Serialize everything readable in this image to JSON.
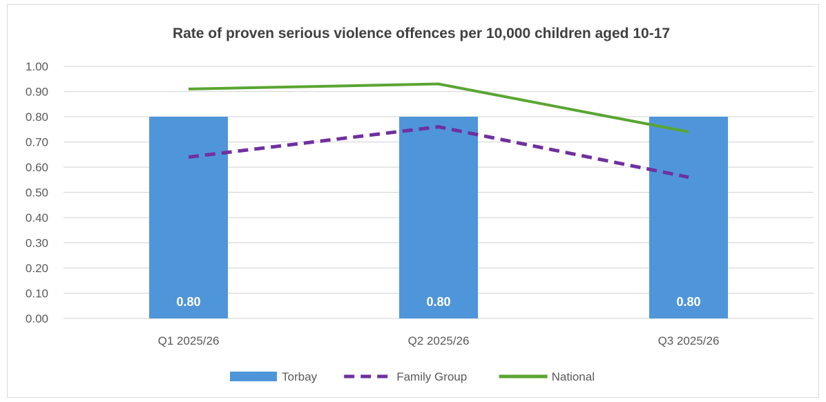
{
  "chart_data": {
    "type": "bar",
    "title": "Rate of proven serious violence offences per 10,000 children aged 10-17",
    "xlabel": "",
    "ylabel": "",
    "categories": [
      "Q1 2025/26",
      "Q2 2025/26",
      "Q3 2025/26"
    ],
    "ylim": [
      0,
      1.0
    ],
    "yticks": [
      "0.00",
      "0.10",
      "0.20",
      "0.30",
      "0.40",
      "0.50",
      "0.60",
      "0.70",
      "0.80",
      "0.90",
      "1.00"
    ],
    "grid": true,
    "legend_position": "bottom",
    "series": [
      {
        "name": "Torbay",
        "type": "bar",
        "values": [
          0.8,
          0.8,
          0.8
        ],
        "data_labels": [
          "0.80",
          "0.80",
          "0.80"
        ],
        "color": "#4f95da"
      },
      {
        "name": "Family Group",
        "type": "line",
        "style": "dashed",
        "values": [
          0.64,
          0.76,
          0.56
        ],
        "color": "#7030a0"
      },
      {
        "name": "National",
        "type": "line",
        "style": "solid",
        "values": [
          0.91,
          0.93,
          0.74
        ],
        "color": "#5aa532"
      }
    ]
  }
}
